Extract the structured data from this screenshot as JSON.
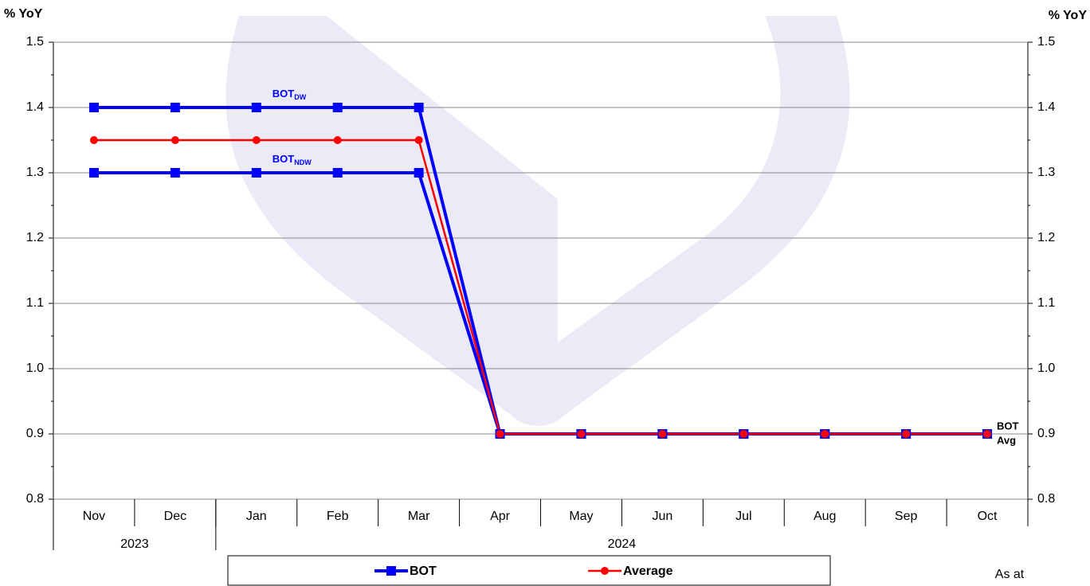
{
  "chart_data": {
    "type": "line",
    "y_label": "% YoY",
    "y2_label": "% YoY",
    "categories": [
      "Nov",
      "Dec",
      "Jan",
      "Feb",
      "Mar",
      "Apr",
      "May",
      "Jun",
      "Jul",
      "Aug",
      "Sep",
      "Oct"
    ],
    "groups": [
      {
        "label": "2023",
        "count": 2
      },
      {
        "label": "2024",
        "count": 10
      }
    ],
    "series": [
      {
        "name": "BOT",
        "color": "#0000ff",
        "marker": "square",
        "values": [
          1.4,
          1.4,
          1.4,
          1.4,
          1.4,
          0.9,
          0.9,
          0.9,
          0.9,
          0.9,
          0.9,
          0.9
        ],
        "label": {
          "main": "BOT",
          "sub": "DW"
        },
        "end_label": "BOT"
      },
      {
        "color": "#0000ff",
        "marker": "square",
        "values": [
          1.3,
          1.3,
          1.3,
          1.3,
          1.3,
          0.9,
          0.9,
          0.9,
          0.9,
          0.9,
          0.9,
          0.9
        ],
        "label": {
          "main": "BOT",
          "sub": "NDW"
        }
      },
      {
        "name": "Average",
        "color": "#ff0000",
        "marker": "circle",
        "values": [
          1.35,
          1.35,
          1.35,
          1.35,
          1.35,
          0.9,
          0.9,
          0.9,
          0.9,
          0.9,
          0.9,
          0.9
        ],
        "end_label": "Avg"
      }
    ],
    "ylim": [
      0.8,
      1.5
    ],
    "yticks": [
      0.8,
      0.9,
      {
        "value": 1,
        "label": "1.0"
      },
      1.1,
      1.2,
      1.3,
      1.4,
      1.5
    ],
    "y2lim": [
      0.8,
      1.5
    ],
    "y2ticks": [
      0.8,
      0.9,
      {
        "value": 1,
        "label": "1.0"
      },
      1.1,
      1.2,
      1.3,
      1.4,
      1.5
    ],
    "grid": true,
    "legend_position": "bottom",
    "footnote": "As at"
  }
}
